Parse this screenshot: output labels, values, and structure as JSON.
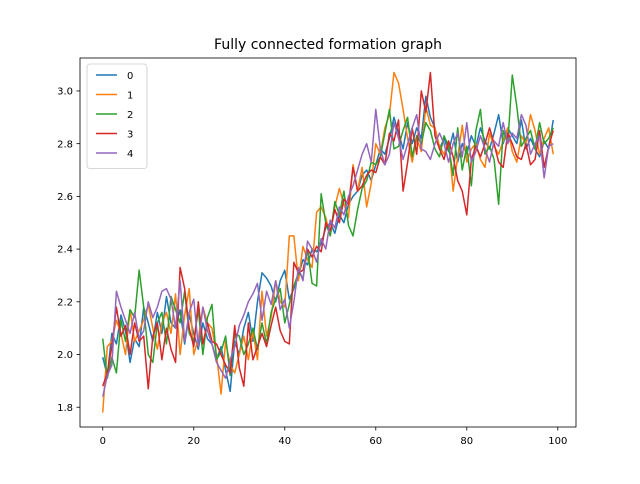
{
  "chart_data": {
    "type": "line",
    "title": "Fully connected formation graph",
    "xlabel": "",
    "ylabel": "",
    "xlim": [
      -5,
      104
    ],
    "ylim": [
      1.725,
      3.125
    ],
    "xticks": [
      0,
      20,
      40,
      60,
      80,
      100
    ],
    "yticks": [
      1.8,
      2.0,
      2.2,
      2.4,
      2.6,
      2.8,
      3.0
    ],
    "xtick_labels": [
      "0",
      "20",
      "40",
      "60",
      "80",
      "100"
    ],
    "ytick_labels": [
      "1.8",
      "2.0",
      "2.2",
      "2.4",
      "2.6",
      "2.8",
      "3.0"
    ],
    "grid": false,
    "legend_position": "top-left",
    "x": [
      0,
      1,
      2,
      3,
      4,
      5,
      6,
      7,
      8,
      9,
      10,
      11,
      12,
      13,
      14,
      15,
      16,
      17,
      18,
      19,
      20,
      21,
      22,
      23,
      24,
      25,
      26,
      27,
      28,
      29,
      30,
      31,
      32,
      33,
      34,
      35,
      36,
      37,
      38,
      39,
      40,
      41,
      42,
      43,
      44,
      45,
      46,
      47,
      48,
      49,
      50,
      51,
      52,
      53,
      54,
      55,
      56,
      57,
      58,
      59,
      60,
      61,
      62,
      63,
      64,
      65,
      66,
      67,
      68,
      69,
      70,
      71,
      72,
      73,
      74,
      75,
      76,
      77,
      78,
      79,
      80,
      81,
      82,
      83,
      84,
      85,
      86,
      87,
      88,
      89,
      90,
      91,
      92,
      93,
      94,
      95,
      96,
      97,
      98,
      99
    ],
    "series": [
      {
        "name": "0",
        "color": "#1f77b4",
        "values": [
          1.99,
          1.92,
          2.08,
          2.04,
          2.15,
          2.09,
          1.97,
          2.06,
          2.03,
          2.18,
          2.12,
          2.05,
          2.16,
          2.08,
          2.22,
          2.12,
          2.1,
          2.17,
          2.04,
          2.15,
          2.08,
          2.02,
          2.12,
          2.06,
          2.04,
          1.98,
          2.03,
          1.94,
          1.86,
          2.05,
          2.0,
          2.1,
          2.16,
          2.05,
          2.2,
          2.31,
          2.29,
          2.26,
          2.2,
          2.28,
          2.32,
          2.21,
          2.25,
          2.3,
          2.36,
          2.34,
          2.4,
          2.39,
          2.42,
          2.48,
          2.5,
          2.46,
          2.53,
          2.5,
          2.57,
          2.6,
          2.62,
          2.68,
          2.7,
          2.66,
          2.72,
          2.78,
          2.76,
          2.82,
          2.9,
          2.84,
          2.78,
          2.88,
          2.8,
          2.86,
          2.82,
          2.98,
          2.9,
          2.86,
          2.78,
          2.82,
          2.77,
          2.84,
          2.73,
          2.8,
          2.76,
          2.83,
          2.79,
          2.86,
          2.81,
          2.78,
          2.84,
          2.91,
          2.8,
          2.86,
          2.83,
          2.8,
          2.89,
          2.78,
          2.82,
          2.78,
          2.75,
          2.81,
          2.78,
          2.89
        ]
      },
      {
        "name": "1",
        "color": "#ff7f0e",
        "values": [
          1.78,
          2.03,
          2.05,
          2.13,
          2.08,
          2.0,
          2.17,
          2.05,
          2.09,
          2.13,
          2.19,
          2.1,
          2.02,
          2.12,
          2.16,
          2.08,
          2.23,
          2.0,
          2.15,
          2.25,
          2.0,
          2.06,
          2.18,
          2.12,
          2.1,
          2.0,
          1.85,
          2.05,
          1.96,
          1.93,
          2.0,
          2.07,
          1.98,
          2.09,
          1.98,
          2.24,
          2.07,
          2.14,
          2.28,
          2.2,
          2.18,
          2.45,
          2.45,
          2.28,
          2.41,
          2.36,
          2.33,
          2.54,
          2.56,
          2.52,
          2.45,
          2.56,
          2.63,
          2.57,
          2.52,
          2.72,
          2.62,
          2.71,
          2.56,
          2.65,
          2.8,
          2.76,
          2.86,
          2.91,
          3.07,
          3.03,
          2.93,
          2.82,
          2.73,
          2.82,
          2.77,
          2.94,
          2.87,
          2.86,
          2.79,
          2.76,
          2.81,
          2.62,
          2.75,
          2.87,
          2.73,
          2.78,
          2.8,
          2.74,
          2.71,
          2.84,
          2.79,
          2.76,
          2.81,
          2.86,
          2.77,
          2.73,
          2.83,
          2.8,
          2.91,
          2.85,
          2.76,
          2.82,
          2.86,
          2.76
        ]
      },
      {
        "name": "2",
        "color": "#2ca02c",
        "values": [
          2.06,
          1.91,
          1.99,
          1.93,
          2.13,
          2.05,
          2.17,
          2.14,
          2.32,
          2.18,
          2.0,
          1.97,
          2.12,
          2.16,
          2.04,
          2.22,
          2.17,
          2.12,
          2.24,
          2.08,
          2.05,
          2.17,
          2.0,
          2.14,
          2.19,
          1.98,
          2.01,
          2.07,
          1.92,
          2.08,
          2.07,
          2.0,
          2.04,
          2.1,
          2.02,
          2.12,
          2.04,
          2.16,
          2.21,
          2.25,
          2.12,
          2.19,
          2.26,
          2.31,
          2.29,
          2.4,
          2.27,
          2.26,
          2.61,
          2.5,
          2.45,
          2.58,
          2.53,
          2.62,
          2.49,
          2.45,
          2.55,
          2.63,
          2.66,
          2.73,
          2.72,
          2.75,
          2.84,
          2.93,
          2.78,
          2.79,
          2.85,
          2.9,
          2.75,
          2.83,
          2.8,
          2.88,
          2.85,
          2.78,
          2.75,
          2.83,
          2.79,
          2.68,
          2.86,
          2.7,
          2.79,
          2.64,
          2.85,
          2.93,
          2.76,
          2.79,
          2.74,
          2.57,
          2.85,
          2.8,
          3.06,
          2.94,
          2.79,
          2.82,
          2.85,
          2.78,
          2.88,
          2.8,
          2.82,
          2.86
        ]
      },
      {
        "name": "3",
        "color": "#d62728",
        "values": [
          1.88,
          1.93,
          2.03,
          2.18,
          2.07,
          2.11,
          2.0,
          2.12,
          2.05,
          2.07,
          1.87,
          2.07,
          2.12,
          1.98,
          2.1,
          2.02,
          1.97,
          2.33,
          2.25,
          2.1,
          2.03,
          2.2,
          2.04,
          2.12,
          2.05,
          2.04,
          2.0,
          1.96,
          1.93,
          2.11,
          1.95,
          1.88,
          2.12,
          1.98,
          2.03,
          2.08,
          2.03,
          2.11,
          2.18,
          2.09,
          2.05,
          2.04,
          2.35,
          2.31,
          2.32,
          2.4,
          2.37,
          2.41,
          2.39,
          2.5,
          2.47,
          2.55,
          2.5,
          2.59,
          2.57,
          2.71,
          2.62,
          2.64,
          2.68,
          2.7,
          2.69,
          2.75,
          2.72,
          2.84,
          2.81,
          2.89,
          2.62,
          2.73,
          2.86,
          2.76,
          3.0,
          2.92,
          3.07,
          2.83,
          2.78,
          2.74,
          2.81,
          2.75,
          2.66,
          2.62,
          2.53,
          2.74,
          2.79,
          2.75,
          2.8,
          2.86,
          2.8,
          2.73,
          2.71,
          2.84,
          2.8,
          2.75,
          2.74,
          2.8,
          2.72,
          2.74,
          2.85,
          2.71,
          2.79,
          2.85
        ]
      },
      {
        "name": "4",
        "color": "#9467bd",
        "values": [
          1.84,
          1.92,
          1.96,
          2.24,
          2.18,
          2.13,
          2.08,
          2.16,
          2.06,
          2.09,
          2.2,
          2.14,
          2.18,
          2.24,
          2.25,
          2.21,
          2.1,
          2.28,
          2.05,
          2.16,
          2.21,
          2.03,
          2.18,
          2.09,
          2.04,
          1.97,
          1.94,
          1.91,
          1.98,
          2.03,
          2.11,
          2.15,
          2.2,
          2.23,
          2.27,
          2.13,
          2.24,
          2.19,
          2.28,
          2.17,
          2.21,
          2.1,
          2.2,
          2.33,
          2.28,
          2.43,
          2.4,
          2.35,
          2.44,
          2.4,
          2.51,
          2.48,
          2.56,
          2.53,
          2.6,
          2.64,
          2.7,
          2.76,
          2.8,
          2.73,
          2.93,
          2.78,
          2.72,
          2.76,
          2.88,
          2.82,
          2.74,
          2.8,
          2.86,
          2.91,
          2.78,
          2.77,
          2.74,
          2.8,
          2.84,
          2.8,
          2.73,
          2.8,
          2.84,
          2.75,
          2.88,
          2.73,
          2.77,
          2.83,
          2.78,
          2.73,
          2.81,
          2.79,
          2.88,
          2.8,
          2.84,
          2.82,
          2.91,
          2.87,
          2.76,
          2.8,
          2.83,
          2.67,
          2.79,
          2.8
        ]
      }
    ]
  }
}
